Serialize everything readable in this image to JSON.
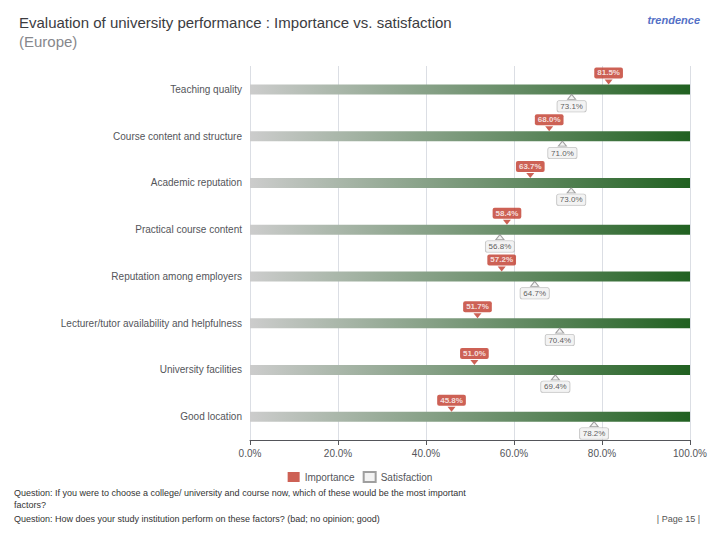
{
  "chart_data": {
    "type": "bar",
    "orientation": "horizontal",
    "title": "Evaluation of university performance : Importance vs. satisfaction",
    "subtitle": "(Europe)",
    "categories": [
      "Teaching quality",
      "Course content and structure",
      "Academic reputation",
      "Practical course content",
      "Reputation among employers",
      "Lecturer/tutor availability and helpfulness",
      "University facilities",
      "Good location"
    ],
    "series": [
      {
        "type": "bar",
        "color": [
          "#cccccc",
          "#216121"
        ],
        "values": [
          100,
          100,
          100,
          100,
          100,
          100,
          100,
          100
        ]
      },
      {
        "name": "Importance",
        "type": "scatter",
        "marker": "triangle-down",
        "color": "#c0392b",
        "values": [
          81.5,
          68.0,
          63.7,
          58.4,
          57.2,
          51.7,
          51.0,
          45.8
        ],
        "value_labels": [
          "81.5%",
          "68.0%",
          "63.7%",
          "58.4%",
          "57.2%",
          "51.7%",
          "51.0%",
          "45.8%"
        ]
      },
      {
        "name": "Satisfaction",
        "type": "scatter",
        "marker": "triangle-up",
        "color": "#f0f0f0",
        "values": [
          73.1,
          71.0,
          73.0,
          56.8,
          64.7,
          70.4,
          69.4,
          78.2
        ],
        "value_labels": [
          "73.1%",
          "71.0%",
          "73.0%",
          "56.8%",
          "64.7%",
          "70.4%",
          "69.4%",
          "78.2%"
        ]
      }
    ],
    "xlim": [
      0,
      100
    ],
    "xticks": [
      {
        "value": 0,
        "label": "0.0%"
      },
      {
        "value": 20,
        "label": "20.0%"
      },
      {
        "value": 40,
        "label": "40.0%"
      },
      {
        "value": 60,
        "label": "60.0%"
      },
      {
        "value": 80,
        "label": "80.0%"
      },
      {
        "value": 100,
        "label": "100.0%"
      }
    ],
    "grid": true,
    "legend": "bottom",
    "data_labels": true,
    "annotations": [
      "trendence",
      "Question: If you were to choose a college/ university and course now, which of these would be the most important",
      "factors?",
      "Question: How does your study institution perform on these factors? (bad; no opinion; good)",
      "| Page 15 |"
    ]
  }
}
